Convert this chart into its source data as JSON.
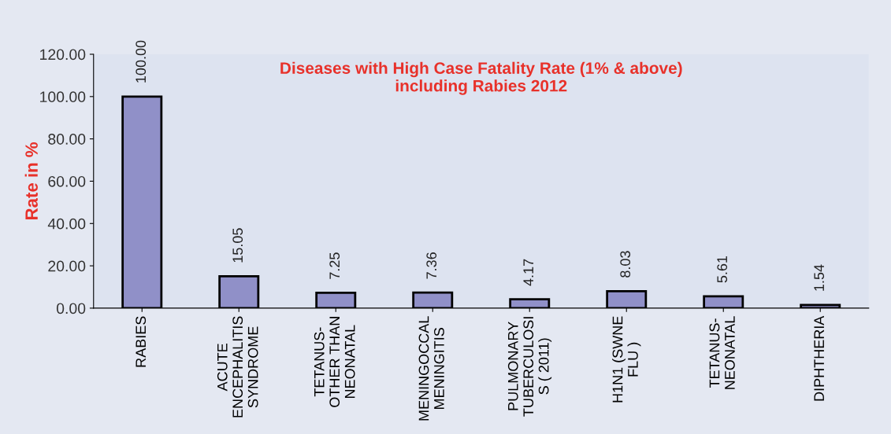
{
  "chart_data": {
    "type": "bar",
    "title": "Diseases with High Case Fatality Rate (1% & above)\nincluding Rabies 2012",
    "ylabel": "Rate in %",
    "categories": [
      "RABIES",
      "ACUTE\nENCEPHALITIS\nSYNDROME",
      "TETANUS-\nOTHER THAN\nNEONATAL",
      "MENINGOCCAL\nMENINGITIS",
      "PULMONARY\nTUBERCULOSI\nS ( 2011)",
      "H1N1 (SWNE\nFLU )",
      "TETANUS-\nNEONATAL",
      "DIPHTHERIA"
    ],
    "values": [
      100.0,
      15.05,
      7.25,
      7.36,
      4.17,
      8.03,
      5.61,
      1.54
    ],
    "value_labels": [
      "100.00",
      "15.05",
      "7.25",
      "7.36",
      "4.17",
      "8.03",
      "5.61",
      "1.54"
    ],
    "color": "#9090c8",
    "ylim": [
      0,
      120
    ],
    "yticks": [
      {
        "value": 0,
        "label": "0.00"
      },
      {
        "value": 20,
        "label": "20.00"
      },
      {
        "value": 40,
        "label": "40.00"
      },
      {
        "value": 60,
        "label": "60.00"
      },
      {
        "value": 80,
        "label": "80.00"
      },
      {
        "value": 100,
        "label": "100.00"
      },
      {
        "value": 120,
        "label": "120.00"
      }
    ],
    "grid": false,
    "legend": false
  }
}
